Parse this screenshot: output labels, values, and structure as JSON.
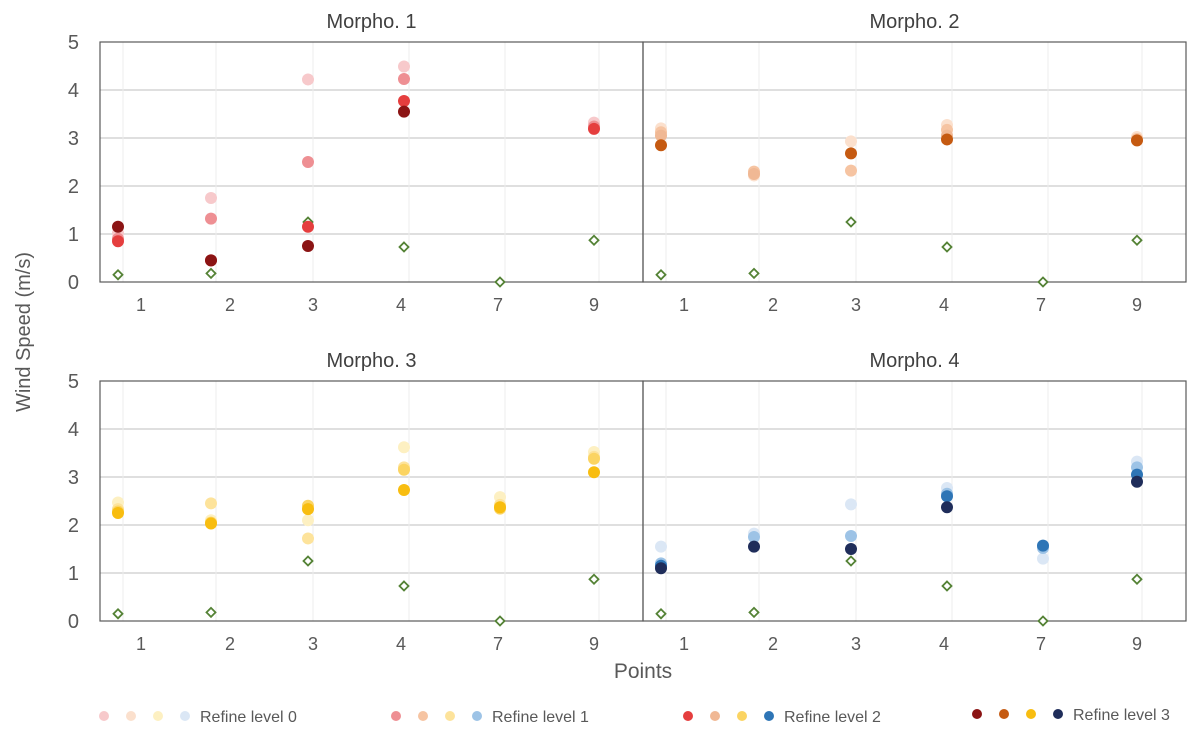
{
  "chart_data": {
    "type": "scatter",
    "ylabel": "Wind Speed (m/s)",
    "xlabel": "Points",
    "ylim": [
      0,
      5
    ],
    "yticks": [
      "0",
      "1",
      "2",
      "3",
      "4",
      "5"
    ],
    "categories": [
      "1",
      "2",
      "3",
      "4",
      "7",
      "9"
    ],
    "grid": true,
    "legend_position": "bottom",
    "legend_labels": [
      "Refine level 0",
      "Refine level 1",
      "Refine level 2",
      "Refine level 3"
    ],
    "reference_series": {
      "marker": "diamond",
      "color": "#548235",
      "values": [
        0.15,
        0.18,
        1.25,
        0.73,
        0.0,
        0.87
      ]
    },
    "panels": [
      {
        "title": "Morpho. 1",
        "colors": [
          "#f7c9cb",
          "#ee8f93",
          "#e53e3e",
          "#8b1414"
        ],
        "series": [
          {
            "values": [
              1.02,
              1.75,
              4.22,
              4.49,
              null,
              3.32
            ]
          },
          {
            "values": [
              0.9,
              1.32,
              2.5,
              4.23,
              null,
              3.24
            ]
          },
          {
            "values": [
              0.85,
              0.45,
              1.15,
              3.77,
              null,
              3.19
            ]
          },
          {
            "values": [
              1.15,
              0.45,
              0.75,
              3.55,
              null,
              null
            ]
          }
        ]
      },
      {
        "title": "Morpho. 2",
        "colors": [
          "#fbe0cd",
          "#f6c4a2",
          "#f0b894",
          "#c55a11"
        ],
        "series": [
          {
            "values": [
              3.2,
              2.22,
              2.93,
              3.27,
              null,
              3.02
            ]
          },
          {
            "values": [
              3.12,
              2.3,
              2.32,
              3.17,
              null,
              2.98
            ]
          },
          {
            "values": [
              3.05,
              2.25,
              null,
              3.05,
              null,
              2.95
            ]
          },
          {
            "values": [
              2.85,
              null,
              2.68,
              2.97,
              null,
              2.95
            ]
          }
        ]
      },
      {
        "title": "Morpho. 3",
        "colors": [
          "#fdf0c2",
          "#fde39b",
          "#fbd462",
          "#f8bd10"
        ],
        "series": [
          {
            "values": [
              2.47,
              2.1,
              2.1,
              3.62,
              2.58,
              3.52
            ]
          },
          {
            "values": [
              2.33,
              2.45,
              1.72,
              3.2,
              2.42,
              3.42
            ]
          },
          {
            "values": [
              2.28,
              2.05,
              2.4,
              3.15,
              2.34,
              3.38
            ]
          },
          {
            "values": [
              2.25,
              2.03,
              2.33,
              2.73,
              2.37,
              3.1
            ]
          }
        ]
      },
      {
        "title": "Morpho. 4",
        "colors": [
          "#dbe7f5",
          "#9dc3e6",
          "#2e75b6",
          "#1f2d5a"
        ],
        "series": [
          {
            "values": [
              1.55,
              1.82,
              2.43,
              2.77,
              1.3,
              3.32
            ]
          },
          {
            "values": [
              1.2,
              1.75,
              1.77,
              2.65,
              1.52,
              3.2
            ]
          },
          {
            "values": [
              1.15,
              null,
              null,
              2.6,
              1.57,
              3.05
            ]
          },
          {
            "values": [
              1.1,
              1.55,
              1.5,
              2.37,
              null,
              2.9
            ]
          }
        ]
      }
    ]
  }
}
